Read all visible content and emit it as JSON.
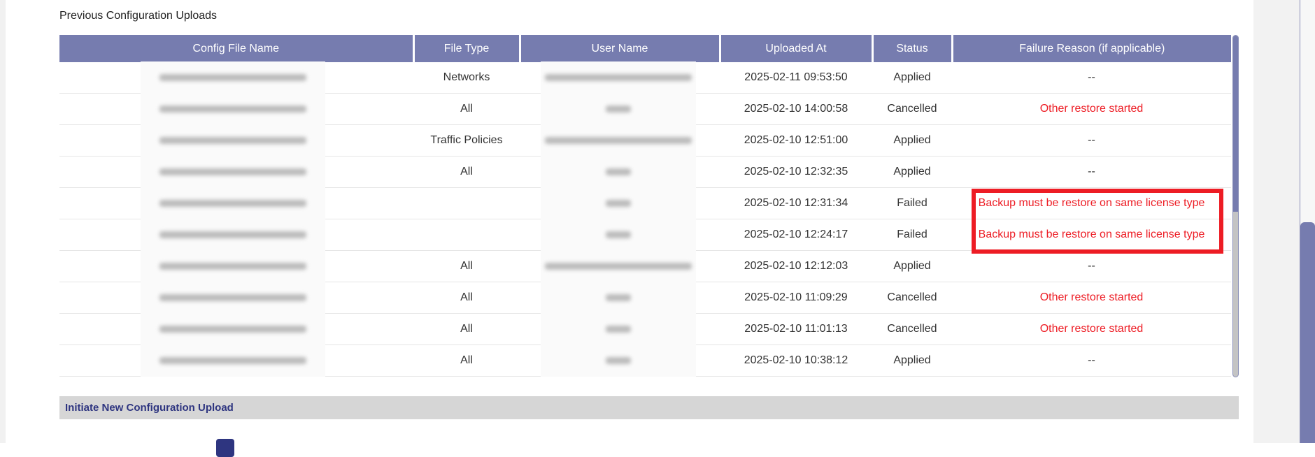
{
  "section_title": "Previous Configuration Uploads",
  "table": {
    "columns": [
      "Config File Name",
      "File Type",
      "User Name",
      "Uploaded At",
      "Status",
      "Failure Reason (if applicable)"
    ],
    "rows": [
      {
        "file_type": "Networks",
        "user_len": "long",
        "uploaded_at": "2025-02-11 09:53:50",
        "status": "Applied",
        "reason": "--",
        "reason_error": false
      },
      {
        "file_type": "All",
        "user_len": "short",
        "uploaded_at": "2025-02-10 14:00:58",
        "status": "Cancelled",
        "reason": "Other restore started",
        "reason_error": true
      },
      {
        "file_type": "Traffic Policies",
        "user_len": "long",
        "uploaded_at": "2025-02-10 12:51:00",
        "status": "Applied",
        "reason": "--",
        "reason_error": false
      },
      {
        "file_type": "All",
        "user_len": "short",
        "uploaded_at": "2025-02-10 12:32:35",
        "status": "Applied",
        "reason": "--",
        "reason_error": false
      },
      {
        "file_type": "",
        "user_len": "short",
        "uploaded_at": "2025-02-10 12:31:34",
        "status": "Failed",
        "reason": "Backup must be restore on same license type",
        "reason_error": true
      },
      {
        "file_type": "",
        "user_len": "short",
        "uploaded_at": "2025-02-10 12:24:17",
        "status": "Failed",
        "reason": "Backup must be restore on same license type",
        "reason_error": true
      },
      {
        "file_type": "All",
        "user_len": "long",
        "uploaded_at": "2025-02-10 12:12:03",
        "status": "Applied",
        "reason": "--",
        "reason_error": false
      },
      {
        "file_type": "All",
        "user_len": "short",
        "uploaded_at": "2025-02-10 11:09:29",
        "status": "Cancelled",
        "reason": "Other restore started",
        "reason_error": true
      },
      {
        "file_type": "All",
        "user_len": "short",
        "uploaded_at": "2025-02-10 11:01:13",
        "status": "Cancelled",
        "reason": "Other restore started",
        "reason_error": true
      },
      {
        "file_type": "All",
        "user_len": "short",
        "uploaded_at": "2025-02-10 10:38:12",
        "status": "Applied",
        "reason": "--",
        "reason_error": false
      }
    ]
  },
  "new_upload_section": {
    "title": "Initiate New Configuration Upload"
  },
  "colors": {
    "header": "#767caf",
    "error": "#ed1c24",
    "accent": "#2e3580",
    "highlight": "#ed1c24"
  }
}
